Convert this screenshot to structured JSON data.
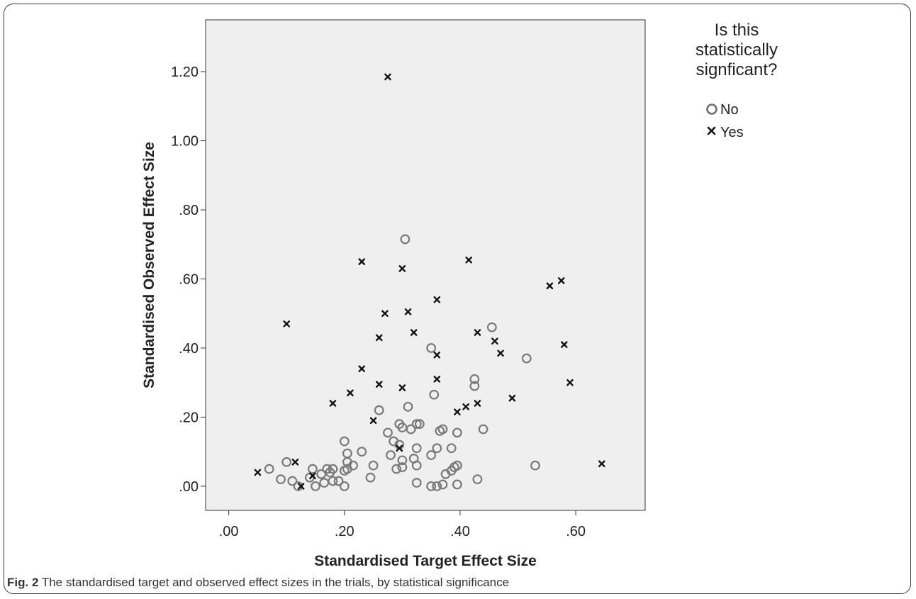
{
  "caption": {
    "label": "Fig. 2",
    "text": " The standardised target and observed effect sizes in the trials, by statistical significance"
  },
  "chart_data": {
    "type": "scatter",
    "xlabel": "Standardised Target Effect Size",
    "ylabel": "Standardised Observed Effect Size",
    "xlim": [
      -0.04,
      0.72
    ],
    "ylim": [
      -0.07,
      1.35
    ],
    "xticks": [
      0,
      0.2,
      0.4,
      0.6
    ],
    "xtick_labels": [
      ".00",
      ".20",
      ".40",
      ".60"
    ],
    "yticks": [
      0,
      0.2,
      0.4,
      0.6,
      0.8,
      1.0,
      1.2
    ],
    "ytick_labels": [
      ".00",
      ".20",
      ".40",
      ".60",
      ".80",
      "1.00",
      "1.20"
    ],
    "grid": false,
    "plot_background": "#efefef",
    "legend": {
      "title": [
        "Is this",
        "statistically",
        "signficant?"
      ],
      "placement": "right"
    },
    "series": [
      {
        "name": "No",
        "marker": "circle",
        "color": "#7a7a7a",
        "points": [
          [
            0.07,
            0.05
          ],
          [
            0.09,
            0.02
          ],
          [
            0.1,
            0.07
          ],
          [
            0.11,
            0.015
          ],
          [
            0.12,
            0.0
          ],
          [
            0.14,
            0.025
          ],
          [
            0.145,
            0.05
          ],
          [
            0.15,
            0.0
          ],
          [
            0.16,
            0.035
          ],
          [
            0.165,
            0.01
          ],
          [
            0.17,
            0.05
          ],
          [
            0.175,
            0.04
          ],
          [
            0.18,
            0.05
          ],
          [
            0.18,
            0.015
          ],
          [
            0.19,
            0.015
          ],
          [
            0.2,
            0.13
          ],
          [
            0.2,
            0.045
          ],
          [
            0.2,
            0.0
          ],
          [
            0.205,
            0.095
          ],
          [
            0.205,
            0.07
          ],
          [
            0.205,
            0.05
          ],
          [
            0.215,
            0.06
          ],
          [
            0.23,
            0.1
          ],
          [
            0.245,
            0.025
          ],
          [
            0.25,
            0.06
          ],
          [
            0.26,
            0.22
          ],
          [
            0.275,
            0.155
          ],
          [
            0.28,
            0.09
          ],
          [
            0.285,
            0.13
          ],
          [
            0.29,
            0.05
          ],
          [
            0.295,
            0.18
          ],
          [
            0.295,
            0.12
          ],
          [
            0.3,
            0.17
          ],
          [
            0.3,
            0.075
          ],
          [
            0.3,
            0.055
          ],
          [
            0.305,
            0.715
          ],
          [
            0.31,
            0.23
          ],
          [
            0.315,
            0.165
          ],
          [
            0.32,
            0.08
          ],
          [
            0.325,
            0.18
          ],
          [
            0.325,
            0.11
          ],
          [
            0.325,
            0.06
          ],
          [
            0.325,
            0.01
          ],
          [
            0.33,
            0.18
          ],
          [
            0.35,
            0.4
          ],
          [
            0.35,
            0.09
          ],
          [
            0.35,
            0.0
          ],
          [
            0.355,
            0.265
          ],
          [
            0.36,
            0.11
          ],
          [
            0.36,
            0.0
          ],
          [
            0.365,
            0.16
          ],
          [
            0.37,
            0.165
          ],
          [
            0.37,
            0.005
          ],
          [
            0.375,
            0.035
          ],
          [
            0.385,
            0.11
          ],
          [
            0.385,
            0.045
          ],
          [
            0.39,
            0.055
          ],
          [
            0.395,
            0.155
          ],
          [
            0.395,
            0.06
          ],
          [
            0.395,
            0.005
          ],
          [
            0.425,
            0.31
          ],
          [
            0.425,
            0.29
          ],
          [
            0.43,
            0.02
          ],
          [
            0.44,
            0.165
          ],
          [
            0.455,
            0.46
          ],
          [
            0.515,
            0.37
          ],
          [
            0.53,
            0.06
          ]
        ]
      },
      {
        "name": "Yes",
        "marker": "x",
        "color": "#111111",
        "points": [
          [
            0.05,
            0.04
          ],
          [
            0.1,
            0.47
          ],
          [
            0.115,
            0.07
          ],
          [
            0.125,
            0.0
          ],
          [
            0.145,
            0.03
          ],
          [
            0.18,
            0.24
          ],
          [
            0.21,
            0.27
          ],
          [
            0.23,
            0.65
          ],
          [
            0.23,
            0.34
          ],
          [
            0.25,
            0.19
          ],
          [
            0.26,
            0.43
          ],
          [
            0.26,
            0.295
          ],
          [
            0.27,
            0.5
          ],
          [
            0.275,
            1.185
          ],
          [
            0.295,
            0.11
          ],
          [
            0.3,
            0.63
          ],
          [
            0.3,
            0.285
          ],
          [
            0.31,
            0.505
          ],
          [
            0.32,
            0.445
          ],
          [
            0.36,
            0.54
          ],
          [
            0.36,
            0.38
          ],
          [
            0.36,
            0.31
          ],
          [
            0.395,
            0.215
          ],
          [
            0.41,
            0.23
          ],
          [
            0.415,
            0.655
          ],
          [
            0.43,
            0.445
          ],
          [
            0.43,
            0.24
          ],
          [
            0.46,
            0.42
          ],
          [
            0.47,
            0.385
          ],
          [
            0.49,
            0.255
          ],
          [
            0.555,
            0.58
          ],
          [
            0.575,
            0.595
          ],
          [
            0.58,
            0.41
          ],
          [
            0.59,
            0.3
          ],
          [
            0.645,
            0.065
          ]
        ]
      }
    ]
  }
}
